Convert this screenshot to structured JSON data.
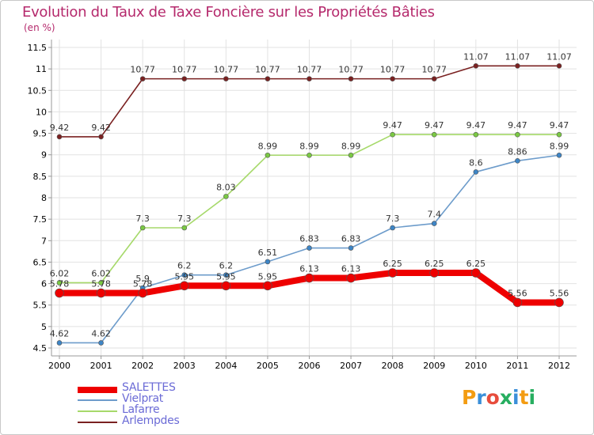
{
  "header": {
    "title": "Evolution du Taux de Taxe Foncière sur les Propriétés Bâties",
    "unit": "(en %)"
  },
  "brand": {
    "letters": [
      "P",
      "r",
      "o",
      "x",
      "i",
      "t",
      "i"
    ],
    "colors": [
      "#f39c12",
      "#3a8fd9",
      "#e74c3c",
      "#27ae60",
      "#3a8fd9",
      "#f39c12",
      "#27ae60"
    ]
  },
  "chart_data": {
    "type": "line",
    "title": "Evolution du Taux de Taxe Foncière sur les Propriétés Bâties",
    "ylabel": "(en %)",
    "xlabel": "",
    "ylim": [
      4.5,
      11.5
    ],
    "yticks": [
      "4.5",
      "5",
      "5.5",
      "6",
      "6.5",
      "7",
      "7.5",
      "8",
      "8.5",
      "9",
      "9.5",
      "10",
      "10.5",
      "11",
      "11.5"
    ],
    "categories": [
      "2000",
      "2001",
      "2002",
      "2003",
      "2004",
      "2005",
      "2006",
      "2007",
      "2008",
      "2009",
      "2010",
      "2011",
      "2012"
    ],
    "grid": true,
    "legend_position": "bottom-left",
    "series": [
      {
        "name": "Arlempdes",
        "color": "#7a2121",
        "marker": "#7a2121",
        "values": [
          9.42,
          9.42,
          10.77,
          10.77,
          10.77,
          10.77,
          10.77,
          10.77,
          10.77,
          10.77,
          11.07,
          11.07,
          11.07
        ],
        "labels": [
          "9.42",
          "9.42",
          "10.77",
          "10.77",
          "10.77",
          "10.77",
          "10.77",
          "10.77",
          "10.77",
          "10.77",
          "11.07",
          "11.07",
          "11.07"
        ]
      },
      {
        "name": "Lafarre",
        "color": "#a6d96a",
        "marker": "#7ac943",
        "values": [
          6.02,
          6.02,
          7.3,
          7.3,
          8.03,
          8.99,
          8.99,
          8.99,
          9.47,
          9.47,
          9.47,
          9.47,
          9.47
        ],
        "labels": [
          "6.02",
          "6.02",
          "7.3",
          "7.3",
          "8.03",
          "8.99",
          "8.99",
          "8.99",
          "9.47",
          "9.47",
          "9.47",
          "9.47",
          "9.47"
        ]
      },
      {
        "name": "Vielprat",
        "color": "#6d9ccb",
        "marker": "#3d85c6",
        "values": [
          4.62,
          4.62,
          5.9,
          6.2,
          6.2,
          6.51,
          6.83,
          6.83,
          7.3,
          7.4,
          8.6,
          8.86,
          8.99
        ],
        "labels": [
          "4.62",
          "4.62",
          "5.9",
          "6.2",
          "6.2",
          "6.51",
          "6.83",
          "6.83",
          "7.3",
          "7.4",
          "8.6",
          "8.86",
          "8.99"
        ]
      },
      {
        "name": "SALETTES",
        "color": "#ee0000",
        "marker": "#ee0000",
        "values": [
          5.78,
          5.78,
          5.78,
          5.95,
          5.95,
          5.95,
          6.13,
          6.13,
          6.25,
          6.25,
          6.25,
          5.56,
          5.56
        ],
        "labels": [
          "5.78",
          "5.78",
          "5.78",
          "5.95",
          "5.95",
          "5.95",
          "6.13",
          "6.13",
          "6.25",
          "6.25",
          "6.25",
          "5.56",
          "5.56"
        ]
      }
    ],
    "legend": [
      "SALETTES",
      "Vielprat",
      "Lafarre",
      "Arlempdes"
    ]
  }
}
